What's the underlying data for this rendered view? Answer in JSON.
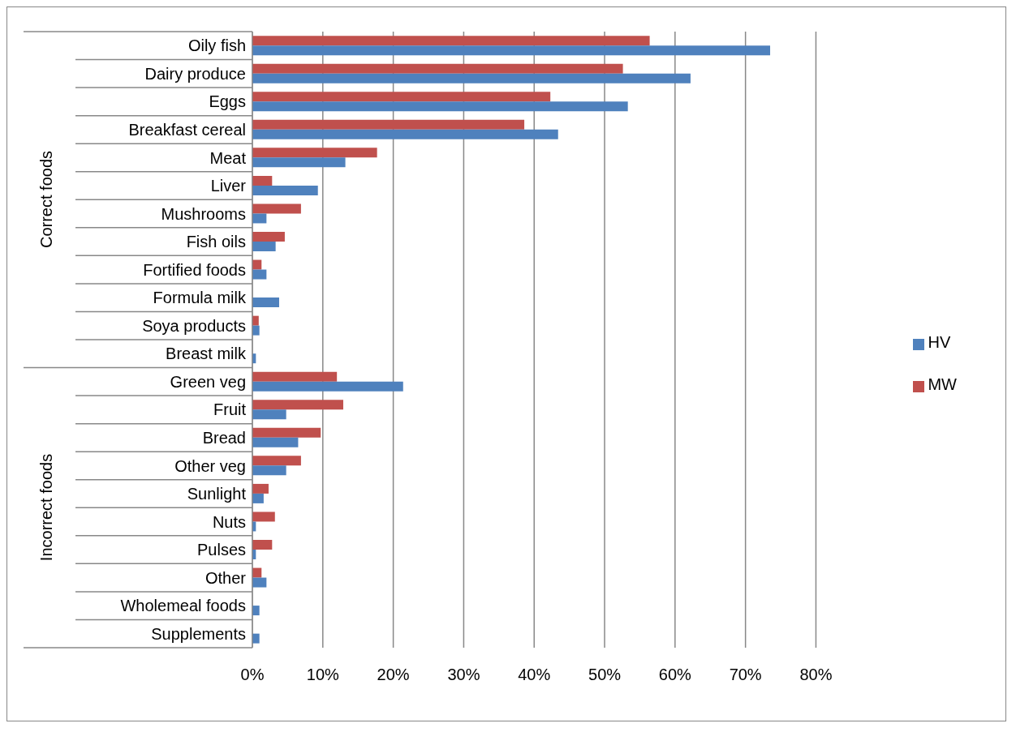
{
  "chart_data": {
    "type": "bar",
    "orientation": "horizontal",
    "categories": [
      "Oily fish",
      "Dairy produce",
      "Eggs",
      "Breakfast cereal",
      "Meat",
      "Liver",
      "Mushrooms",
      "Fish oils",
      "Fortified foods",
      "Formula milk",
      "Soya products",
      "Breast milk",
      "Green veg",
      "Fruit",
      "Bread",
      "Other veg",
      "Sunlight",
      "Nuts",
      "Pulses",
      "Other",
      "Wholemeal foods",
      "Supplements"
    ],
    "series": [
      {
        "name": "MW",
        "color": "#c0504d",
        "values": [
          56.4,
          52.6,
          42.3,
          38.6,
          17.7,
          2.8,
          6.9,
          4.6,
          1.3,
          null,
          0.9,
          null,
          12.0,
          12.9,
          9.7,
          6.9,
          2.3,
          3.2,
          2.8,
          1.3,
          null,
          null
        ]
      },
      {
        "name": "HV",
        "color": "#4f81bd",
        "values": [
          73.5,
          62.2,
          53.3,
          43.4,
          13.2,
          9.3,
          2.0,
          3.3,
          2.0,
          3.8,
          1.0,
          0.5,
          21.4,
          4.8,
          6.5,
          4.8,
          1.6,
          0.5,
          0.5,
          2.0,
          1.0,
          1.0
        ]
      }
    ],
    "xlim": [
      0,
      80
    ],
    "xticks": [
      {
        "value": 0,
        "label": "0%"
      },
      {
        "value": 10,
        "label": "10%"
      },
      {
        "value": 20,
        "label": "20%"
      },
      {
        "value": 30,
        "label": "30%"
      },
      {
        "value": 40,
        "label": "40%"
      },
      {
        "value": 50,
        "label": "50%"
      },
      {
        "value": 60,
        "label": "60%"
      },
      {
        "value": 70,
        "label": "70%"
      },
      {
        "value": 80,
        "label": "80%"
      }
    ],
    "grid": "x",
    "legend": "right",
    "annotations": [
      "Correct foods",
      "Incorrect foods"
    ]
  }
}
